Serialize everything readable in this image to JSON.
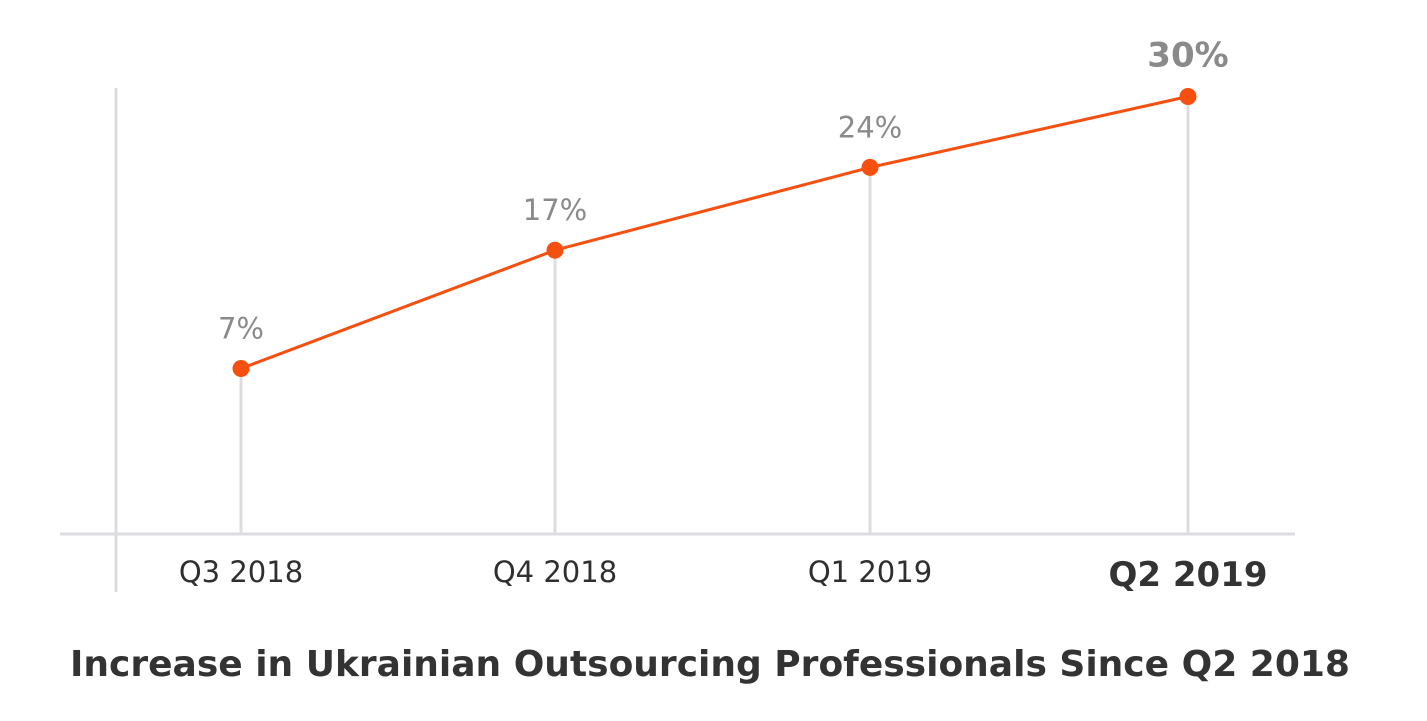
{
  "colors": {
    "accent": "#f5500f",
    "axis": "#dcdde1",
    "label_gray": "#8a8a8a",
    "text_dark": "#333333"
  },
  "chart_data": {
    "type": "line",
    "title": "Increase in Ukrainian Outsourcing Professionals Since Q2 2018",
    "xlabel": "",
    "ylabel": "",
    "categories": [
      "Q3 2018",
      "Q4 2018",
      "Q1 2019",
      "Q2 2019"
    ],
    "series": [
      {
        "values": [
          7,
          17,
          24,
          30
        ],
        "data_labels": [
          "7%",
          "17%",
          "24%",
          "30%"
        ]
      }
    ],
    "highlight_index": 3,
    "ylim": [
      -7,
      33
    ],
    "grid": false,
    "legend": "none"
  }
}
